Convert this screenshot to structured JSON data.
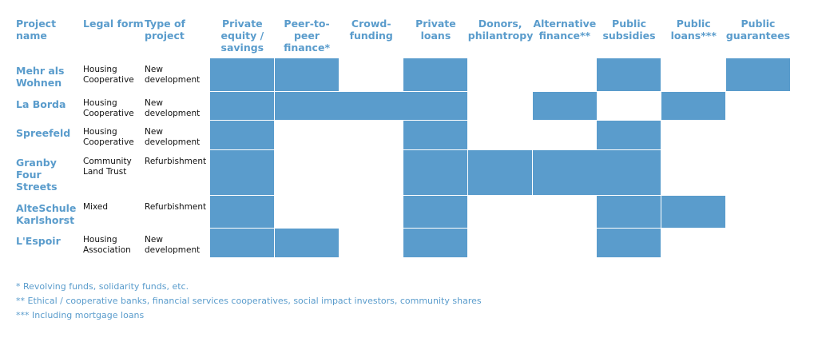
{
  "headers": [
    {
      "key": "project",
      "label": "Project\nname"
    },
    {
      "key": "legal",
      "label": "Legal form"
    },
    {
      "key": "type",
      "label": "Type of\nproject"
    },
    {
      "key": "private_equity",
      "label": "Private\nequity /\nsavings"
    },
    {
      "key": "p2p",
      "label": "Peer-to-\npeer\nfinance*"
    },
    {
      "key": "crowd",
      "label": "Crowd-\nfunding"
    },
    {
      "key": "private_loans",
      "label": "Private\nloans"
    },
    {
      "key": "donors",
      "label": "Donors,\nphilantropy"
    },
    {
      "key": "alt_finance",
      "label": "Alternative\nfinance**"
    },
    {
      "key": "public_subsidies",
      "label": "Public\nsubsidies"
    },
    {
      "key": "public_loans",
      "label": "Public\nloans***"
    },
    {
      "key": "public_guarantees",
      "label": "Public\nguarantees"
    }
  ],
  "chart_data": {
    "type": "table",
    "funding_columns": [
      "Private equity / savings",
      "Peer-to-peer finance*",
      "Crowd-funding",
      "Private loans",
      "Donors, philantropy",
      "Alternative finance**",
      "Public subsidies",
      "Public loans***",
      "Public guarantees"
    ],
    "rows": [
      {
        "project": "Mehr als\nWohnen",
        "legal_form": "Housing\nCooperative",
        "type": "New\ndevelopment",
        "funding": [
          1,
          1,
          0,
          1,
          0,
          0,
          1,
          0,
          1
        ]
      },
      {
        "project": "La Borda",
        "legal_form": "Housing\nCooperative",
        "type": "New\ndevelopment",
        "funding": [
          1,
          1,
          1,
          1,
          0,
          1,
          0,
          1,
          0
        ]
      },
      {
        "project": "Spreefeld",
        "legal_form": "Housing\nCooperative",
        "type": "New\ndevelopment",
        "funding": [
          1,
          0,
          0,
          1,
          0,
          0,
          1,
          0,
          0
        ]
      },
      {
        "project": "Granby\nFour\nStreets",
        "legal_form": "Community\nLand Trust",
        "type": "Refurbishment",
        "funding": [
          1,
          0,
          0,
          1,
          1,
          1,
          1,
          0,
          0
        ]
      },
      {
        "project": "AlteSchule\nKarlshorst",
        "legal_form": "Mixed",
        "type": "Refurbishment",
        "funding": [
          1,
          0,
          0,
          1,
          0,
          0,
          1,
          1,
          0
        ]
      },
      {
        "project": "L'Espoir",
        "legal_form": "Housing\nAssociation",
        "type": "New\ndevelopment",
        "funding": [
          1,
          1,
          0,
          1,
          0,
          0,
          1,
          0,
          0
        ]
      }
    ],
    "fill_color": "#5a9ccc",
    "header_color": "#5a9ccc"
  },
  "footnotes": [
    "* Revolving funds, solidarity funds, etc.",
    "** Ethical / cooperative banks, financial services cooperatives, social impact investors, community shares",
    "*** Including mortgage loans"
  ]
}
